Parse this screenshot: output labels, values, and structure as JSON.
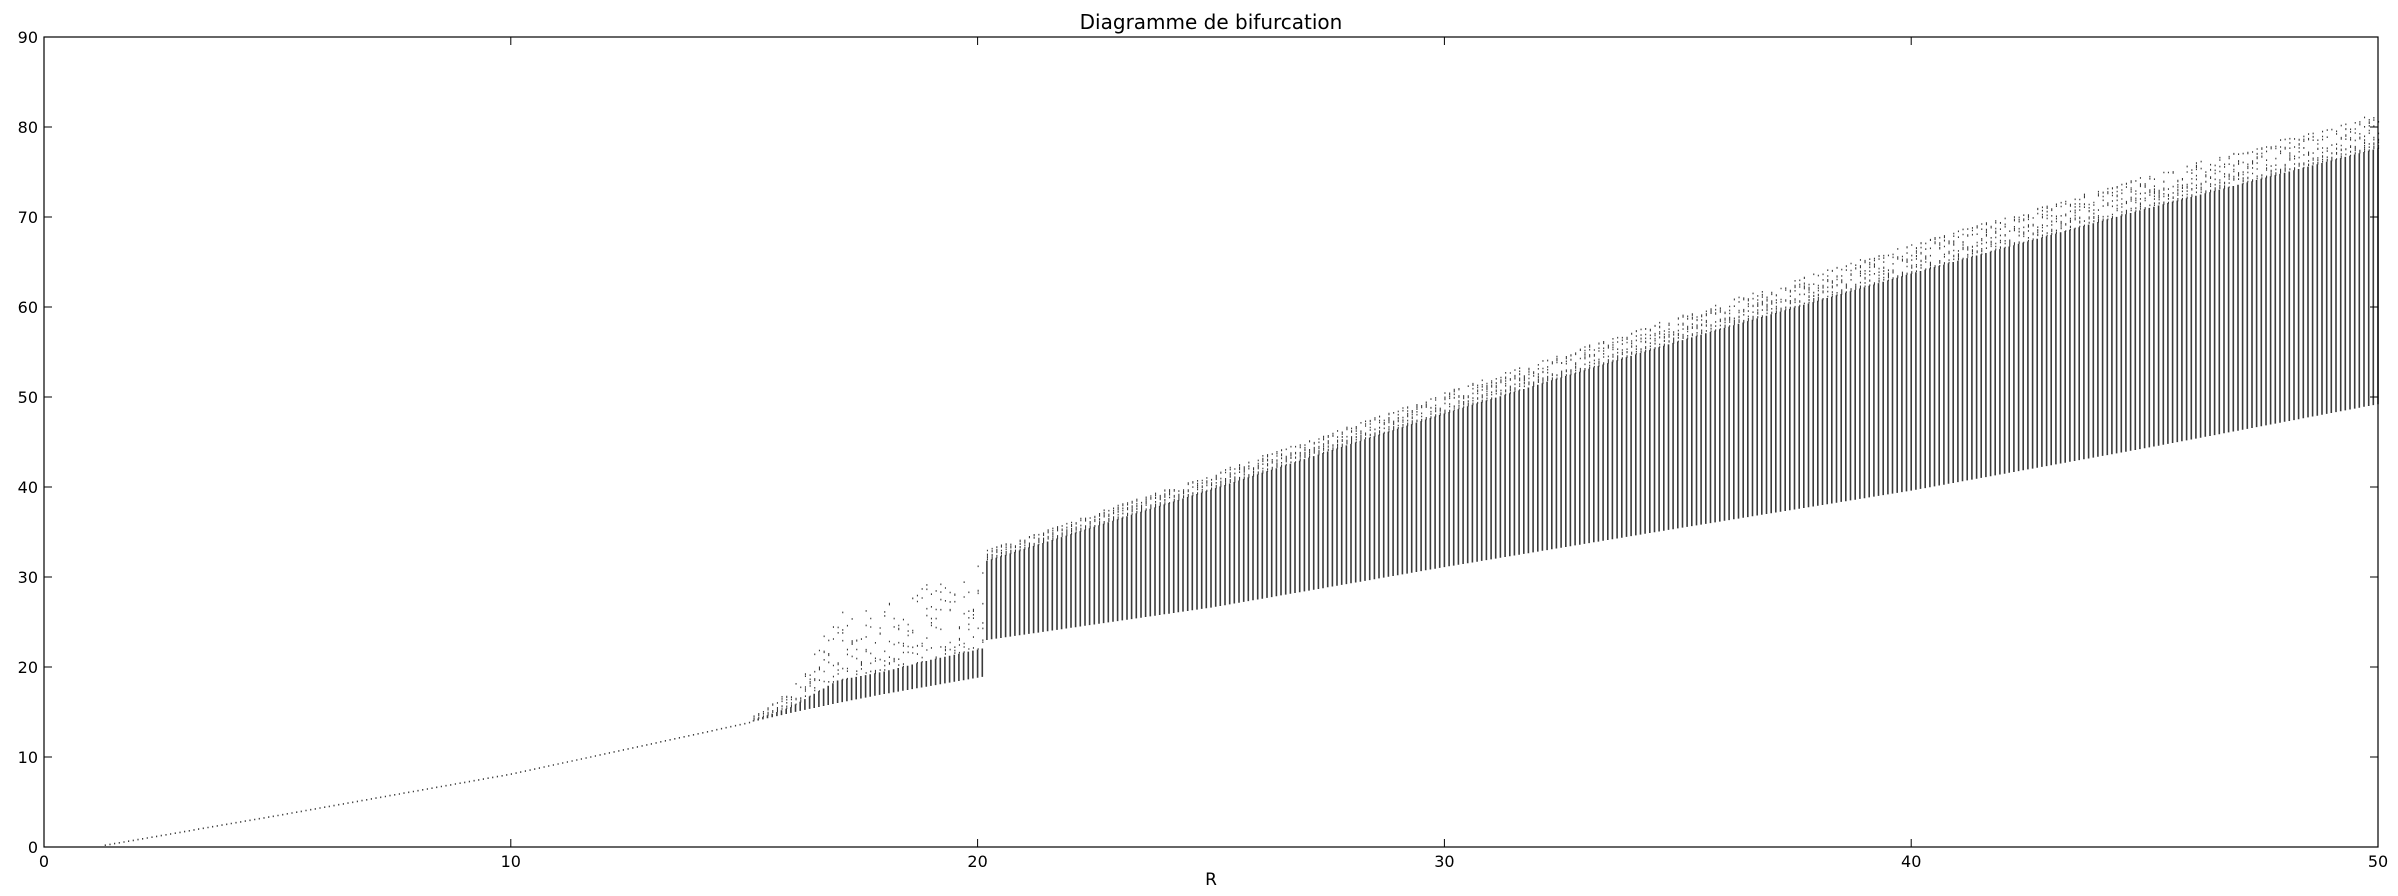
{
  "chart_data": {
    "type": "scatter",
    "title": "Diagramme de bifurcation",
    "xlabel": "R",
    "ylabel": "",
    "xlim": [
      0,
      50
    ],
    "ylim": [
      0,
      90
    ],
    "xticks": [
      0,
      10,
      20,
      30,
      40,
      50
    ],
    "yticks": [
      0,
      10,
      20,
      30,
      40,
      50,
      60,
      70,
      80,
      90
    ],
    "grid": false,
    "legend": "none",
    "colors": {
      "points": "#3a3a3a",
      "axes": "#000000",
      "background": "#ffffff"
    },
    "description_of_series": [
      {
        "r_range": [
          1.3,
          15.0
        ],
        "y": "single stable branch y ≈ 0.93·R − 1.2"
      },
      {
        "r_range": [
          15.0,
          20.2
        ],
        "y_lower": "≈ 0.95·R − 0.2",
        "y_upper": "spiky, up to ~31"
      },
      {
        "r_range": [
          20.2,
          50.0
        ],
        "y_lower": "≈ 23 + 0.88·(R − 20.2)",
        "y_upper": "≈ 32.5 + 1.65·(R − 20.2)"
      }
    ],
    "envelope": {
      "R": [
        1.3,
        5,
        10,
        15,
        16,
        17,
        18,
        19,
        20.1,
        20.2,
        25,
        30,
        35,
        40,
        45,
        50
      ],
      "y_min": [
        0.2,
        3.5,
        8.1,
        13.7,
        14.9,
        16.0,
        17.0,
        17.9,
        18.9,
        23.0,
        26.6,
        31.1,
        35.4,
        39.6,
        44.3,
        49.2
      ],
      "y_max": [
        0.2,
        3.5,
        8.1,
        13.8,
        17.5,
        26.0,
        27.0,
        29.5,
        31.5,
        33.0,
        41.5,
        50.5,
        59.0,
        67.0,
        74.5,
        81.5
      ]
    }
  }
}
